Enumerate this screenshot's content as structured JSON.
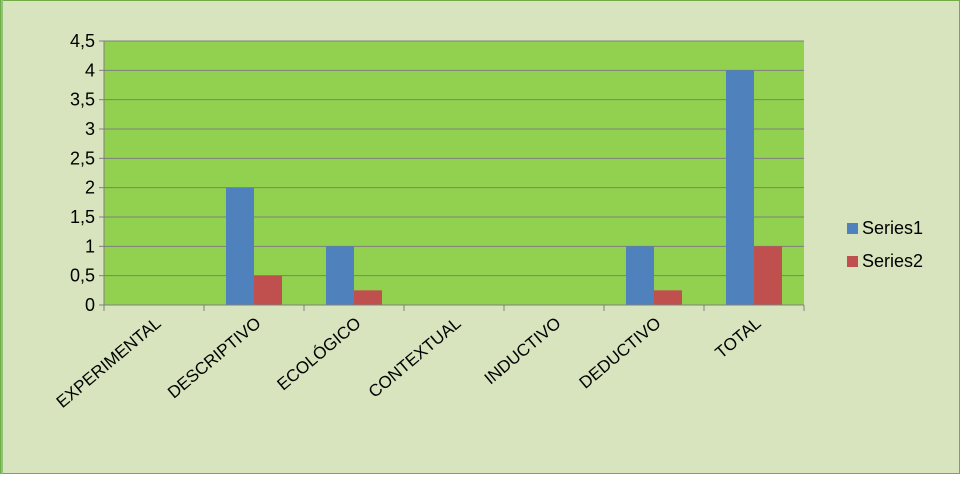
{
  "chart_data": {
    "type": "bar",
    "categories": [
      "EXPERIMENTAL",
      "DESCRIPTIVO",
      "ECOLÓGICO",
      "CONTEXTUAL",
      "INDUCTIVO",
      "DEDUCTIVO",
      "TOTAL"
    ],
    "series": [
      {
        "name": "Series1",
        "values": [
          0,
          2,
          1,
          0,
          0,
          1,
          4
        ],
        "color": "#4f81bd"
      },
      {
        "name": "Series2",
        "values": [
          0,
          0.5,
          0.25,
          0,
          0,
          0.25,
          1
        ],
        "color": "#c0504d"
      }
    ],
    "yticks": [
      "0",
      "0,5",
      "1",
      "1,5",
      "2",
      "2,5",
      "3",
      "3,5",
      "4",
      "4,5"
    ],
    "ylim": [
      0,
      4.5
    ],
    "grid": true,
    "legend_position": "right",
    "colors": {
      "chart_area": "#d7e4bd",
      "plot_area": "#92d050",
      "frame_border": "#70ad47"
    }
  }
}
